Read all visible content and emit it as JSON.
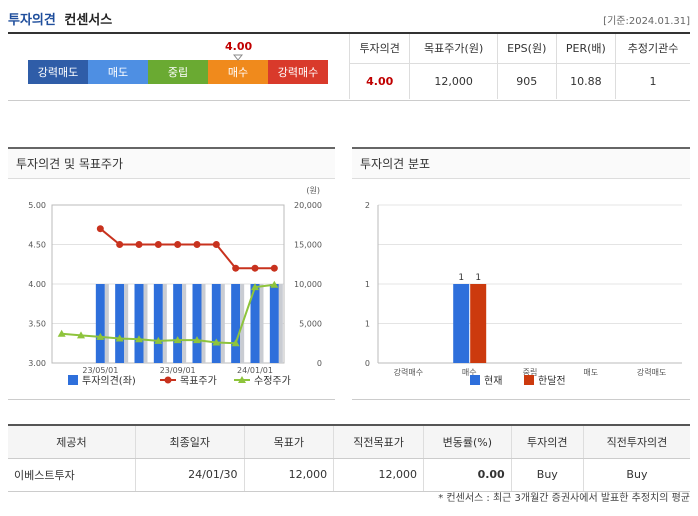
{
  "header": {
    "title_part1": "투자의견",
    "title_part2": "컨센서스",
    "base_date": "[기준:2024.01.31]"
  },
  "opinion_bar": {
    "segments": [
      {
        "label": "강력매도",
        "color": "#2f5da8"
      },
      {
        "label": "매도",
        "color": "#4e8fe3"
      },
      {
        "label": "중립",
        "color": "#6aaa32"
      },
      {
        "label": "매수",
        "color": "#f08a1c"
      },
      {
        "label": "강력매수",
        "color": "#d93a2b"
      }
    ],
    "current_score": "4.00",
    "current_value": 4.0
  },
  "summary": {
    "headers": [
      "투자의견",
      "목표주가(원)",
      "EPS(원)",
      "PER(배)",
      "추정기관수"
    ],
    "values": [
      "4.00",
      "12,000",
      "905",
      "10.88",
      "1"
    ]
  },
  "panel1": {
    "title": "투자의견 및 목표주가"
  },
  "panel2": {
    "title": "투자의견 분포"
  },
  "chart_data": [
    {
      "type": "bar",
      "title": "",
      "left_axis": {
        "ticks": [
          "3.00",
          "3.50",
          "4.00",
          "4.50",
          "5.00"
        ],
        "range": [
          3,
          5
        ]
      },
      "right_axis": {
        "unit": "(원)",
        "ticks": [
          "0",
          "5,000",
          "10,000",
          "15,000",
          "20,000"
        ],
        "range": [
          0,
          20000
        ]
      },
      "x_ticks": [
        "23/05/01",
        "23/09/01",
        "24/01/01"
      ],
      "x_tick_positions": [
        2,
        6,
        10
      ],
      "categories": 12,
      "series": [
        {
          "name": "투자의견(좌)",
          "type": "bar",
          "axis": "left",
          "color": "#2e6fdb",
          "values": [
            null,
            null,
            4,
            4,
            4,
            4,
            4,
            4,
            4,
            4,
            4,
            4
          ]
        },
        {
          "name": "목표주가",
          "type": "line",
          "axis": "right",
          "color": "#c8321e",
          "values": [
            null,
            null,
            17000,
            15000,
            15000,
            15000,
            15000,
            15000,
            15000,
            12000,
            12000,
            12000
          ]
        },
        {
          "name": "수정주가",
          "type": "line",
          "axis": "right",
          "color": "#8ec43c",
          "values": [
            3700,
            3500,
            3300,
            3100,
            3000,
            2800,
            2900,
            2900,
            2600,
            2500,
            9600,
            9900
          ]
        }
      ],
      "legend": "bottom"
    },
    {
      "type": "bar",
      "title": "",
      "categories": [
        "강력매수",
        "매수",
        "중립",
        "매도",
        "강력매도"
      ],
      "y_ticks": [
        "0",
        "1",
        "1",
        "2"
      ],
      "ylim": [
        0,
        2
      ],
      "series": [
        {
          "name": "현재",
          "color": "#2e6fdb",
          "values": [
            0,
            1,
            0,
            0,
            0
          ]
        },
        {
          "name": "한달전",
          "color": "#cc3a0e",
          "values": [
            0,
            1,
            0,
            0,
            0
          ]
        }
      ],
      "data_labels": [
        "1",
        "1"
      ],
      "legend": "bottom"
    }
  ],
  "broker_table": {
    "headers": [
      "제공처",
      "최종일자",
      "목표가",
      "직전목표가",
      "변동률(%)",
      "투자의견",
      "직전투자의견"
    ],
    "rows": [
      [
        "이베스트투자",
        "24/01/30",
        "12,000",
        "12,000",
        "0.00",
        "Buy",
        "Buy"
      ]
    ]
  },
  "footnote": "* 컨센서스 : 최근 3개월간 증권사에서 발표한 추정치의 평균"
}
